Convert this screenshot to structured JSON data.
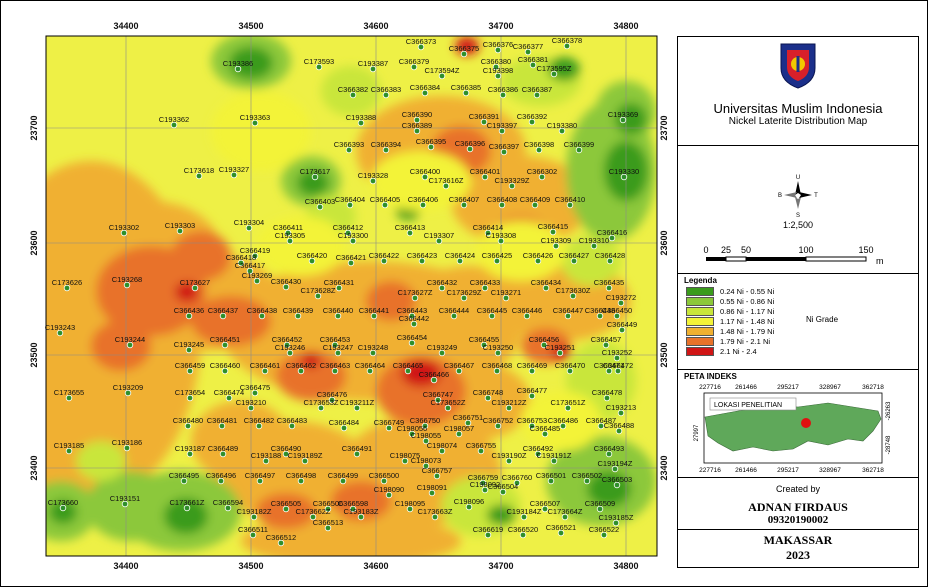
{
  "axes": {
    "x_ticks": [
      "34400",
      "34500",
      "34600",
      "34700",
      "34800"
    ],
    "y_ticks": [
      "23700",
      "23600",
      "23500",
      "23400"
    ]
  },
  "colors": {
    "grade_bins": [
      "#3a9b1b",
      "#8cc83a",
      "#c9e63a",
      "#f3f338",
      "#f0b030",
      "#e8722a",
      "#d01515"
    ],
    "base_fill": "#eef046",
    "point_fill": "#2f8f2a",
    "point_stroke": "#ffffff"
  },
  "points": [
    [
      "C366373",
      420,
      43
    ],
    [
      "C366375",
      463,
      50
    ],
    [
      "C366376",
      497,
      46
    ],
    [
      "C366377",
      527,
      48
    ],
    [
      "C366378",
      566,
      42
    ],
    [
      "C193386",
      237,
      65
    ],
    [
      "C173593",
      318,
      63
    ],
    [
      "C193387",
      372,
      65
    ],
    [
      "C366379",
      413,
      63
    ],
    [
      "C366380",
      495,
      63
    ],
    [
      "C366381",
      532,
      61
    ],
    [
      "C173594Z",
      441,
      72
    ],
    [
      "C193398",
      497,
      72
    ],
    [
      "C173595Z",
      553,
      70
    ],
    [
      "C366382",
      352,
      91
    ],
    [
      "C366383",
      385,
      91
    ],
    [
      "C366384",
      424,
      89
    ],
    [
      "C366385",
      465,
      89
    ],
    [
      "C366386",
      502,
      91
    ],
    [
      "C366387",
      536,
      91
    ],
    [
      "C193362",
      173,
      121
    ],
    [
      "C193363",
      254,
      119
    ],
    [
      "C193388",
      360,
      119
    ],
    [
      "C366390",
      416,
      116
    ],
    [
      "C366391",
      483,
      118
    ],
    [
      "C366392",
      531,
      118
    ],
    [
      "C193369",
      622,
      116
    ],
    [
      "C366389",
      416,
      127
    ],
    [
      "C193397",
      501,
      127
    ],
    [
      "C193380",
      561,
      127
    ],
    [
      "C366393",
      348,
      146
    ],
    [
      "C366394",
      385,
      146
    ],
    [
      "C366395",
      430,
      143
    ],
    [
      "C366396",
      469,
      145
    ],
    [
      "C366397",
      503,
      148
    ],
    [
      "C366398",
      538,
      146
    ],
    [
      "C366399",
      578,
      146
    ],
    [
      "C173618",
      198,
      172
    ],
    [
      "C193327",
      233,
      171
    ],
    [
      "C173617",
      314,
      173
    ],
    [
      "C193328",
      372,
      177
    ],
    [
      "C366400",
      424,
      173
    ],
    [
      "C366401",
      484,
      173
    ],
    [
      "C366302",
      541,
      173
    ],
    [
      "C193330",
      623,
      173
    ],
    [
      "C173616Z",
      445,
      182
    ],
    [
      "C193329Z",
      511,
      182
    ],
    [
      "C366403",
      319,
      203
    ],
    [
      "C366404",
      349,
      201
    ],
    [
      "C366405",
      384,
      201
    ],
    [
      "C366406",
      422,
      201
    ],
    [
      "C366407",
      463,
      201
    ],
    [
      "C366408",
      501,
      201
    ],
    [
      "C366409",
      534,
      201
    ],
    [
      "C366410",
      569,
      201
    ],
    [
      "C193302",
      123,
      229
    ],
    [
      "C193303",
      179,
      227
    ],
    [
      "C193304",
      248,
      224
    ],
    [
      "C366411",
      287,
      229
    ],
    [
      "C366412",
      347,
      229
    ],
    [
      "C366413",
      409,
      229
    ],
    [
      "C366414",
      487,
      229
    ],
    [
      "C366415",
      552,
      228
    ],
    [
      "C366416",
      611,
      234
    ],
    [
      "C193305",
      289,
      237
    ],
    [
      "C193300",
      352,
      237
    ],
    [
      "C193307",
      438,
      237
    ],
    [
      "C193308",
      500,
      237
    ],
    [
      "C193309",
      555,
      242
    ],
    [
      "C193310",
      593,
      242
    ],
    [
      "C366419",
      254,
      252
    ],
    [
      "C366420",
      311,
      257
    ],
    [
      "C366421",
      350,
      259
    ],
    [
      "C366422",
      383,
      257
    ],
    [
      "C366423",
      421,
      257
    ],
    [
      "C366424",
      459,
      257
    ],
    [
      "C366425",
      496,
      257
    ],
    [
      "C366426",
      537,
      257
    ],
    [
      "C366427",
      573,
      257
    ],
    [
      "C366428",
      609,
      257
    ],
    [
      "C366418",
      240,
      259
    ],
    [
      "C366417",
      249,
      267
    ],
    [
      "C193269",
      256,
      277
    ],
    [
      "C173626",
      66,
      284
    ],
    [
      "C193268",
      126,
      281
    ],
    [
      "C173627",
      194,
      284
    ],
    [
      "C366430",
      285,
      283
    ],
    [
      "C366431",
      338,
      284
    ],
    [
      "C366432",
      441,
      284
    ],
    [
      "C366433",
      484,
      284
    ],
    [
      "C366434",
      545,
      284
    ],
    [
      "C366435",
      608,
      284
    ],
    [
      "C173628Z",
      317,
      292
    ],
    [
      "C173627Z",
      414,
      294
    ],
    [
      "C173629Z",
      463,
      294
    ],
    [
      "C193271",
      505,
      294
    ],
    [
      "C173630Z",
      572,
      292
    ],
    [
      "C193272",
      620,
      299
    ],
    [
      "C366436",
      188,
      312
    ],
    [
      "C366437",
      222,
      312
    ],
    [
      "C366438",
      261,
      312
    ],
    [
      "C366439",
      297,
      312
    ],
    [
      "C366440",
      337,
      312
    ],
    [
      "C366441",
      373,
      312
    ],
    [
      "C366443",
      411,
      312
    ],
    [
      "C366444",
      453,
      312
    ],
    [
      "C366445",
      491,
      312
    ],
    [
      "C366446",
      526,
      312
    ],
    [
      "C366447",
      567,
      312
    ],
    [
      "C366448",
      599,
      312
    ],
    [
      "C366450",
      616,
      312
    ],
    [
      "C366442",
      413,
      320
    ],
    [
      "C366449",
      621,
      326
    ],
    [
      "C193243",
      59,
      329
    ],
    [
      "C193244",
      129,
      341
    ],
    [
      "C193245",
      188,
      346
    ],
    [
      "C366451",
      224,
      341
    ],
    [
      "C366452",
      286,
      341
    ],
    [
      "C366453",
      334,
      341
    ],
    [
      "C366454",
      411,
      339
    ],
    [
      "C366455",
      483,
      341
    ],
    [
      "C366456",
      543,
      341
    ],
    [
      "C366457",
      605,
      341
    ],
    [
      "C193246",
      289,
      349
    ],
    [
      "C193247",
      337,
      349
    ],
    [
      "C193248",
      372,
      349
    ],
    [
      "C193249",
      441,
      349
    ],
    [
      "C193250",
      497,
      349
    ],
    [
      "C193251",
      559,
      349
    ],
    [
      "C193252",
      616,
      354
    ],
    [
      "C366459",
      189,
      367
    ],
    [
      "C366460",
      224,
      367
    ],
    [
      "C366461",
      264,
      367
    ],
    [
      "C366462",
      300,
      367
    ],
    [
      "C366463",
      334,
      367
    ],
    [
      "C366464",
      369,
      367
    ],
    [
      "C366465",
      407,
      367
    ],
    [
      "C366467",
      458,
      367
    ],
    [
      "C366468",
      496,
      367
    ],
    [
      "C366469",
      531,
      367
    ],
    [
      "C366470",
      569,
      367
    ],
    [
      "C366471",
      608,
      367
    ],
    [
      "C366472",
      617,
      367
    ],
    [
      "C366466",
      433,
      376
    ],
    [
      "C173655",
      68,
      394
    ],
    [
      "C193209",
      127,
      389
    ],
    [
      "C173654",
      189,
      394
    ],
    [
      "C366474",
      228,
      394
    ],
    [
      "C366475",
      254,
      389
    ],
    [
      "C366476",
      331,
      396
    ],
    [
      "C366747",
      437,
      396
    ],
    [
      "C366748",
      487,
      394
    ],
    [
      "C366477",
      531,
      392
    ],
    [
      "C366478",
      606,
      394
    ],
    [
      "C193210",
      250,
      404
    ],
    [
      "C173653Z",
      320,
      404
    ],
    [
      "C193211Z",
      356,
      404
    ],
    [
      "C173652Z",
      447,
      404
    ],
    [
      "C193212Z",
      508,
      404
    ],
    [
      "C173651Z",
      567,
      404
    ],
    [
      "C193213",
      620,
      409
    ],
    [
      "C366480",
      187,
      422
    ],
    [
      "C366481",
      221,
      422
    ],
    [
      "C366482",
      258,
      422
    ],
    [
      "C366483",
      291,
      422
    ],
    [
      "C366484",
      343,
      424
    ],
    [
      "C366749",
      388,
      424
    ],
    [
      "C366750",
      424,
      422
    ],
    [
      "C366751",
      467,
      419
    ],
    [
      "C366752",
      497,
      422
    ],
    [
      "C366753",
      531,
      422
    ],
    [
      "C366486",
      562,
      422
    ],
    [
      "C366487",
      600,
      422
    ],
    [
      "C366488",
      618,
      427
    ],
    [
      "C198056",
      411,
      430
    ],
    [
      "C198057",
      458,
      430
    ],
    [
      "C366485",
      544,
      430
    ],
    [
      "C198055",
      425,
      437
    ],
    [
      "C193185",
      68,
      447
    ],
    [
      "C193186",
      126,
      444
    ],
    [
      "C193187",
      189,
      450
    ],
    [
      "C366489",
      222,
      450
    ],
    [
      "C366490",
      285,
      450
    ],
    [
      "C366491",
      356,
      450
    ],
    [
      "C198074",
      441,
      447
    ],
    [
      "C366755",
      480,
      447
    ],
    [
      "C366492",
      537,
      450
    ],
    [
      "C366493",
      608,
      450
    ],
    [
      "C193188",
      265,
      457
    ],
    [
      "C193189Z",
      304,
      457
    ],
    [
      "C198075",
      404,
      457
    ],
    [
      "C193190Z",
      508,
      457
    ],
    [
      "C193191Z",
      553,
      457
    ],
    [
      "C193194Z",
      614,
      465
    ],
    [
      "C198073",
      425,
      462
    ],
    [
      "C366495",
      183,
      477
    ],
    [
      "C366496",
      220,
      477
    ],
    [
      "C366497",
      259,
      477
    ],
    [
      "C366498",
      300,
      477
    ],
    [
      "C366499",
      342,
      477
    ],
    [
      "C366500",
      383,
      477
    ],
    [
      "C366757",
      436,
      472
    ],
    [
      "C366759",
      482,
      479
    ],
    [
      "C366760",
      516,
      479
    ],
    [
      "C366501",
      550,
      477
    ],
    [
      "C366502",
      586,
      477
    ],
    [
      "C366503",
      616,
      481
    ],
    [
      "C198092",
      484,
      486
    ],
    [
      "C198090",
      388,
      491
    ],
    [
      "C198091",
      431,
      489
    ],
    [
      "C366504",
      502,
      488
    ],
    [
      "C173660",
      62,
      504
    ],
    [
      "C193151",
      124,
      500
    ],
    [
      "C173661Z",
      186,
      504
    ],
    [
      "C366594",
      227,
      504
    ],
    [
      "C366505",
      285,
      505
    ],
    [
      "C366506",
      327,
      505
    ],
    [
      "C366598",
      352,
      505
    ],
    [
      "C198095",
      409,
      505
    ],
    [
      "C198096",
      468,
      503
    ],
    [
      "C366507",
      544,
      505
    ],
    [
      "C366509",
      599,
      505
    ],
    [
      "C193182Z",
      253,
      513
    ],
    [
      "C173662Z",
      312,
      513
    ],
    [
      "C193183Z",
      360,
      513
    ],
    [
      "C173663Z",
      434,
      513
    ],
    [
      "C193184Z",
      523,
      513
    ],
    [
      "C173664Z",
      564,
      513
    ],
    [
      "C193185Z",
      615,
      519
    ],
    [
      "C366513",
      327,
      524
    ],
    [
      "C366511",
      252,
      531
    ],
    [
      "C366619",
      487,
      531
    ],
    [
      "C366520",
      522,
      531
    ],
    [
      "C366521",
      560,
      529
    ],
    [
      "C366522",
      603,
      531
    ],
    [
      "C366512",
      280,
      539
    ]
  ],
  "panel": {
    "university": "Universitas Muslim Indonesia",
    "map_title": "Nickel Laterite Distribution Map",
    "scale_text": "1:2,500",
    "scale_labels": [
      "0",
      "25",
      "50",
      "100",
      "150",
      "m"
    ],
    "legend_title": "Legenda",
    "legend_items": [
      {
        "label": "0.24 Ni - 0.55 Ni"
      },
      {
        "label": "0.55 Ni - 0.86 Ni"
      },
      {
        "label": "0.86 Ni - 1.17 Ni"
      },
      {
        "label": "1.17 Ni - 1.48 Ni"
      },
      {
        "label": "1.48 Ni - 1.79 Ni"
      },
      {
        "label": "1.79 Ni - 2.1 Ni"
      },
      {
        "label": "2.1 Ni - 2.4"
      }
    ],
    "legend_caption": "Ni Grade",
    "index_title": "PETA INDEKS",
    "index_label": "LOKASI PENELITIAN",
    "index_x_ticks": [
      "227716",
      "261466",
      "295217",
      "328967",
      "362718"
    ],
    "index_y_left": "27997",
    "index_y_right1": "-26263",
    "index_y_right2": "-28748",
    "created_by": "Created by",
    "author": "ADNAN FIRDAUS",
    "author_id": "09320190002",
    "city": "MAKASSAR",
    "year": "2023",
    "compass_letters": [
      "U",
      "S",
      "B",
      "T"
    ]
  }
}
